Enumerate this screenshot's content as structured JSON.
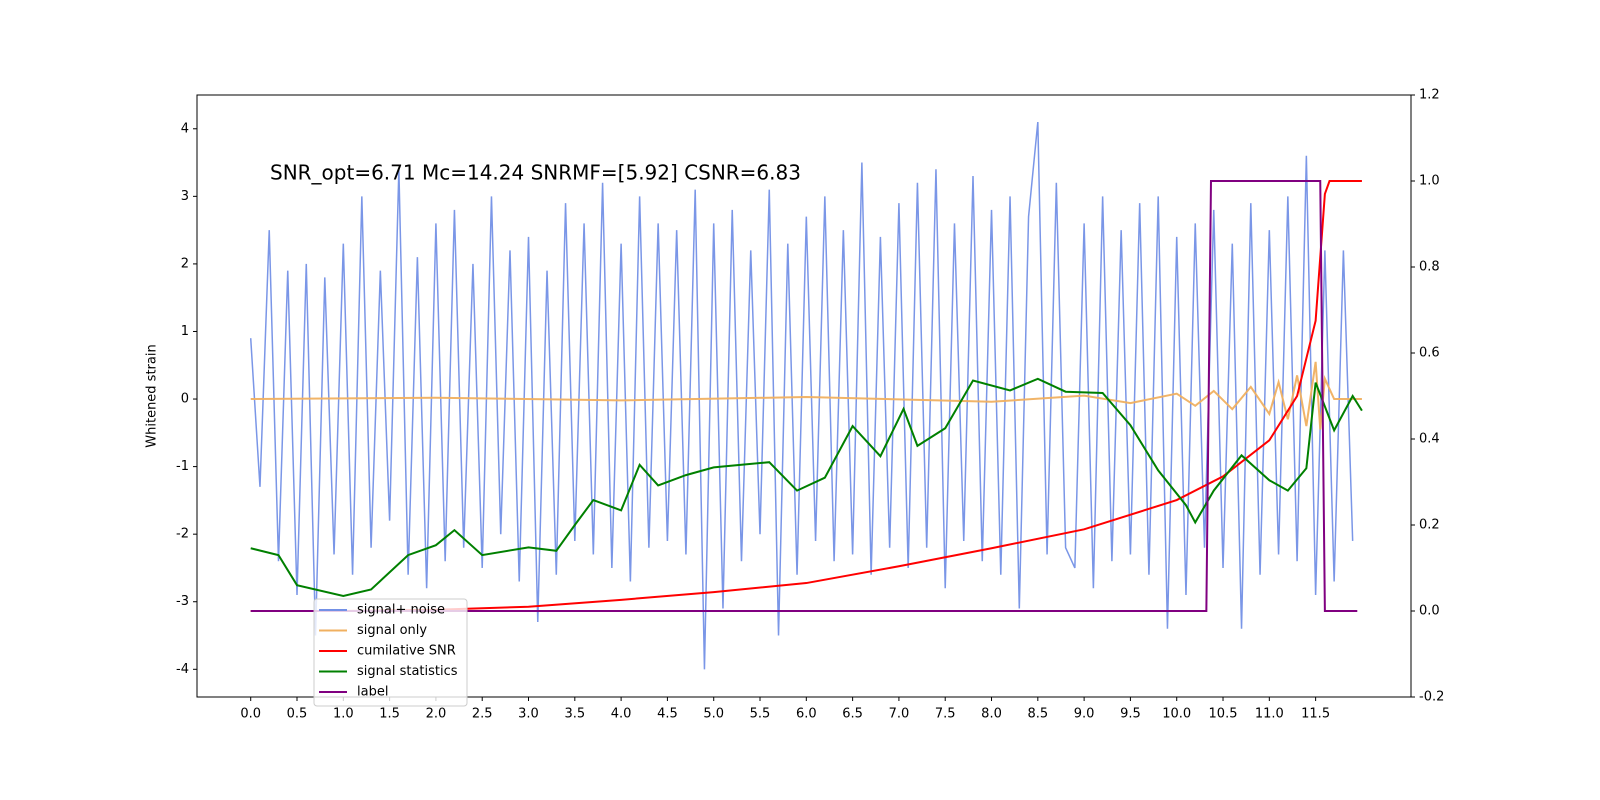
{
  "chart_data": {
    "type": "line",
    "annotation": "SNR_opt=6.71   Mc=14.24  SNRMF=[5.92]   CSNR=6.83",
    "y_label": "Whitened strain",
    "xlim": [
      -0.58,
      12.53
    ],
    "ylim": [
      -4.41,
      4.5
    ],
    "y2lim": [
      -0.2,
      1.2
    ],
    "xticks": [
      {
        "value": 0,
        "label": "0.0"
      },
      0.5,
      {
        "value": 1,
        "label": "1.0"
      },
      1.5,
      {
        "value": 2,
        "label": "2.0"
      },
      2.5,
      {
        "value": 3,
        "label": "3.0"
      },
      3.5,
      {
        "value": 4,
        "label": "4.0"
      },
      4.5,
      {
        "value": 5,
        "label": "5.0"
      },
      5.5,
      {
        "value": 6,
        "label": "6.0"
      },
      6.5,
      {
        "value": 7,
        "label": "7.0"
      },
      7.5,
      {
        "value": 8,
        "label": "8.0"
      },
      8.5,
      {
        "value": 9,
        "label": "9.0"
      },
      9.5,
      {
        "value": 10,
        "label": "10.0"
      },
      10.5,
      {
        "value": 11,
        "label": "11.0"
      },
      11.5
    ],
    "yticks": [
      -4,
      -3,
      -2,
      -1,
      0,
      1,
      2,
      3,
      4
    ],
    "y2ticks": [
      -0.2,
      {
        "value": 0,
        "label": "0.0"
      },
      0.2,
      0.4,
      0.6,
      0.8,
      {
        "value": 1,
        "label": "1.0"
      },
      1.2
    ],
    "legend": "lower left",
    "series": [
      {
        "name": "signal+ noise",
        "color": "#7390e6",
        "axis": "y",
        "x": [
          0,
          0.1,
          0.2,
          0.3,
          0.4,
          0.5,
          0.6,
          0.7,
          0.8,
          0.9,
          1,
          1.1,
          1.2,
          1.3,
          1.4,
          1.5,
          1.6,
          1.7,
          1.8,
          1.9,
          2,
          2.1,
          2.2,
          2.3,
          2.4,
          2.5,
          2.6,
          2.7,
          2.8,
          2.9,
          3,
          3.1,
          3.2,
          3.3,
          3.4,
          3.5,
          3.6,
          3.7,
          3.8,
          3.9,
          4,
          4.1,
          4.2,
          4.3,
          4.4,
          4.5,
          4.6,
          4.7,
          4.8,
          4.9,
          5,
          5.1,
          5.2,
          5.3,
          5.4,
          5.5,
          5.6,
          5.7,
          5.8,
          5.9,
          6,
          6.1,
          6.2,
          6.3,
          6.4,
          6.5,
          6.6,
          6.7,
          6.8,
          6.9,
          7,
          7.1,
          7.2,
          7.3,
          7.4,
          7.5,
          7.6,
          7.7,
          7.8,
          7.9,
          8,
          8.1,
          8.2,
          8.3,
          8.4,
          8.5,
          8.6,
          8.7,
          8.8,
          8.9,
          9,
          9.1,
          9.2,
          9.3,
          9.4,
          9.5,
          9.6,
          9.7,
          9.8,
          9.9,
          10,
          10.1,
          10.2,
          10.3,
          10.4,
          10.5,
          10.6,
          10.7,
          10.8,
          10.9,
          11,
          11.1,
          11.2,
          11.3,
          11.4,
          11.5,
          11.6,
          11.7,
          11.8,
          11.9
        ],
        "values": [
          0.9,
          -1.3,
          2.5,
          -2.4,
          1.9,
          -2.9,
          2.0,
          -3.5,
          1.8,
          -2.3,
          2.3,
          -2.6,
          3.0,
          -2.2,
          1.9,
          -1.8,
          3.4,
          -2.6,
          2.1,
          -2.8,
          2.6,
          -2.4,
          2.8,
          -2.2,
          2.0,
          -2.5,
          3.0,
          -2.0,
          2.2,
          -2.7,
          2.4,
          -3.3,
          1.9,
          -2.6,
          2.9,
          -2.1,
          2.6,
          -2.3,
          3.2,
          -2.5,
          2.3,
          -2.7,
          3.0,
          -2.2,
          2.6,
          -2.1,
          2.5,
          -2.3,
          3.1,
          -4.0,
          2.6,
          -3.1,
          2.8,
          -2.4,
          2.2,
          -2.0,
          3.1,
          -3.5,
          2.3,
          -2.6,
          2.7,
          -2.1,
          3.0,
          -2.4,
          2.5,
          -2.3,
          3.5,
          -2.6,
          2.4,
          -2.2,
          2.9,
          -2.5,
          3.2,
          -2.2,
          3.4,
          -2.8,
          2.6,
          -2.1,
          3.3,
          -2.4,
          2.8,
          -2.6,
          3.0,
          -3.1,
          2.7,
          4.1,
          -2.3,
          3.2,
          -2.2,
          -2.5,
          2.6,
          -2.8,
          3.0,
          -2.4,
          2.5,
          -2.3,
          2.9,
          -2.6,
          3.0,
          -3.4,
          2.4,
          -2.9,
          2.6,
          -2.2,
          2.8,
          -2.5,
          2.3,
          -3.4,
          2.9,
          -2.6,
          2.5,
          -2.3,
          3.0,
          -2.4,
          3.6,
          -2.9,
          2.2,
          -2.7,
          2.2,
          -2.1
        ]
      },
      {
        "name": "signal only",
        "color": "#f0b060",
        "axis": "y",
        "x": [
          0,
          2,
          4,
          6,
          8,
          9,
          9.5,
          10,
          10.2,
          10.4,
          10.6,
          10.8,
          11.0,
          11.1,
          11.2,
          11.3,
          11.4,
          11.5,
          11.55,
          11.6,
          11.7,
          12
        ],
        "values": [
          0,
          0.02,
          -0.02,
          0.03,
          -0.04,
          0.05,
          -0.06,
          0.08,
          -0.1,
          0.12,
          -0.15,
          0.18,
          -0.22,
          0.25,
          -0.3,
          0.35,
          -0.4,
          0.55,
          -0.45,
          0.3,
          0,
          0
        ]
      },
      {
        "name": "cumilative SNR",
        "color": "#ff0000",
        "axis": "y2",
        "x": [
          0,
          1,
          2,
          3,
          4,
          5,
          6,
          7,
          8,
          9,
          10,
          10.5,
          11,
          11.3,
          11.5,
          11.6,
          11.65,
          12
        ],
        "values": [
          0,
          0,
          0.003,
          0.01,
          0.026,
          0.044,
          0.065,
          0.104,
          0.146,
          0.19,
          0.258,
          0.313,
          0.397,
          0.5,
          0.675,
          0.97,
          1,
          1
        ]
      },
      {
        "name": "signal statistics",
        "color": "#008000",
        "axis": "y2",
        "x": [
          0,
          0.3,
          0.5,
          1.0,
          1.3,
          1.7,
          2.0,
          2.2,
          2.5,
          3.0,
          3.3,
          3.5,
          3.7,
          4.0,
          4.2,
          4.4,
          4.7,
          5.0,
          5.3,
          5.6,
          5.9,
          6.2,
          6.5,
          6.8,
          7.05,
          7.2,
          7.5,
          7.8,
          8.2,
          8.5,
          8.8,
          9.2,
          9.5,
          9.8,
          10.1,
          10.2,
          10.4,
          10.7,
          11.0,
          11.2,
          11.4,
          11.5,
          11.7,
          11.9,
          12.0
        ],
        "values": [
          0.146,
          0.13,
          0.06,
          0.035,
          0.05,
          0.13,
          0.153,
          0.188,
          0.13,
          0.148,
          0.14,
          0.2,
          0.258,
          0.234,
          0.34,
          0.292,
          0.316,
          0.334,
          0.34,
          0.346,
          0.28,
          0.31,
          0.43,
          0.36,
          0.47,
          0.384,
          0.425,
          0.536,
          0.513,
          0.54,
          0.51,
          0.507,
          0.432,
          0.327,
          0.246,
          0.206,
          0.28,
          0.362,
          0.304,
          0.28,
          0.332,
          0.531,
          0.42,
          0.5,
          0.466
        ]
      },
      {
        "name": "label",
        "color": "#800080",
        "axis": "y2",
        "x": [
          0,
          10.32,
          10.37,
          11.55,
          11.6,
          11.95
        ],
        "values": [
          0,
          0,
          1,
          1,
          0,
          0
        ]
      }
    ]
  }
}
